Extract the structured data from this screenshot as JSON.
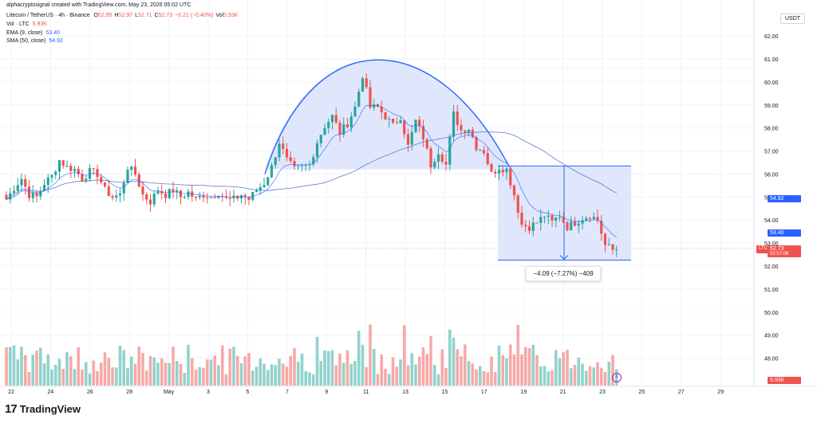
{
  "header": {
    "attribution": "alphacryptosignal created with TradingView.com, May 23, 2026 05:02 UTC",
    "symbol_line": "Litecoin / TetherUS · 4h · Binance",
    "ohlc": [
      {
        "k": "O",
        "v": "52.95"
      },
      {
        "k": "H",
        "v": "52.97"
      },
      {
        "k": "L",
        "v": "52.71"
      },
      {
        "k": "C",
        "v": "52.73"
      },
      {
        "k": "",
        "v": "−0.21 (−0.40%)"
      },
      {
        "k": "Vol",
        "v": "5.93K"
      }
    ],
    "vol_label": "Vol · LTC",
    "vol_value": "5.93K",
    "ema_label": "EMA (9, close)",
    "ema_value": "53.40",
    "sma_label": "SMA (50, close)",
    "sma_value": "54.92"
  },
  "currency": "USDT",
  "brand": {
    "logo": "17",
    "name": "TradingView"
  },
  "measure_label": "−4.09 (−7.27%) −409",
  "price_labels": {
    "sma": "54.92",
    "ema": "53.40",
    "ticker": "LTCUSDT",
    "last": "52.73",
    "countdown": "02:57:06",
    "volume": "5.93K"
  },
  "colors": {
    "up": "#26a69a",
    "down": "#ef5350",
    "ema": "#2962ff",
    "sma": "#5b7bd5",
    "pattern": "#2962ff",
    "pattern_fill": "#dbe3fb"
  },
  "chart_data": {
    "type": "candlestick",
    "y_axis_ticks": [
      62.0,
      61.0,
      60.0,
      59.0,
      58.0,
      57.0,
      56.0,
      55.0,
      54.0,
      53.0,
      52.0,
      51.0,
      50.0,
      49.0,
      48.0
    ],
    "x_axis_ticks": [
      "22",
      "24",
      "26",
      "28",
      "May",
      "3",
      "5",
      "7",
      "9",
      "11",
      "13",
      "15",
      "17",
      "19",
      "21",
      "23",
      "25",
      "27",
      "29"
    ],
    "anchors": [
      [
        0,
        54.9
      ],
      [
        2,
        55.4
      ],
      [
        4,
        55.8
      ],
      [
        6,
        55.1
      ],
      [
        8,
        55.0
      ],
      [
        10,
        55.6
      ],
      [
        12,
        55.9
      ],
      [
        14,
        56.6
      ],
      [
        16,
        56.3
      ],
      [
        18,
        56.2
      ],
      [
        20,
        55.8
      ],
      [
        22,
        56.1
      ],
      [
        24,
        56.0
      ],
      [
        26,
        55.3
      ],
      [
        28,
        55.0
      ],
      [
        30,
        55.1
      ],
      [
        32,
        56.3
      ],
      [
        34,
        56.0
      ],
      [
        36,
        55.1
      ],
      [
        38,
        54.8
      ],
      [
        40,
        55.3
      ],
      [
        42,
        55.1
      ],
      [
        44,
        55.3
      ],
      [
        46,
        55.0
      ],
      [
        48,
        55.2
      ],
      [
        50,
        54.9
      ],
      [
        52,
        55.1
      ],
      [
        54,
        55.0
      ],
      [
        56,
        55.2
      ],
      [
        58,
        54.9
      ],
      [
        60,
        54.9
      ],
      [
        62,
        55.1
      ],
      [
        64,
        54.9
      ],
      [
        66,
        55.3
      ],
      [
        68,
        55.6
      ],
      [
        70,
        56.3
      ],
      [
        72,
        57.4
      ],
      [
        74,
        56.6
      ],
      [
        76,
        56.2
      ],
      [
        78,
        56.3
      ],
      [
        80,
        56.4
      ],
      [
        82,
        57.4
      ],
      [
        84,
        58.1
      ],
      [
        86,
        58.5
      ],
      [
        88,
        57.8
      ],
      [
        90,
        58.2
      ],
      [
        92,
        58.9
      ],
      [
        94,
        60.3
      ],
      [
        96,
        58.9
      ],
      [
        98,
        58.9
      ],
      [
        100,
        58.5
      ],
      [
        102,
        58.1
      ],
      [
        104,
        58.5
      ],
      [
        106,
        57.2
      ],
      [
        108,
        58.3
      ],
      [
        110,
        57.6
      ],
      [
        112,
        56.4
      ],
      [
        114,
        57.0
      ],
      [
        116,
        56.4
      ],
      [
        118,
        58.6
      ],
      [
        120,
        57.9
      ],
      [
        122,
        58.0
      ],
      [
        124,
        57.2
      ],
      [
        126,
        57.0
      ],
      [
        128,
        56.0
      ],
      [
        130,
        56.3
      ],
      [
        132,
        56.2
      ],
      [
        134,
        55.1
      ],
      [
        136,
        53.8
      ],
      [
        138,
        53.7
      ],
      [
        140,
        53.9
      ],
      [
        142,
        54.2
      ],
      [
        144,
        53.9
      ],
      [
        146,
        54.2
      ],
      [
        148,
        53.7
      ],
      [
        150,
        53.9
      ],
      [
        152,
        54.1
      ],
      [
        154,
        54.2
      ],
      [
        156,
        54.0
      ],
      [
        158,
        52.9
      ],
      [
        160,
        52.7
      ],
      [
        161,
        52.73
      ]
    ],
    "volume_axis": "Vol · LTC",
    "last_volume": "5.93K",
    "measure": {
      "from": 56.35,
      "to": 52.26,
      "change": "−4.09",
      "percent": "−7.27%",
      "ticks": "−409"
    }
  }
}
